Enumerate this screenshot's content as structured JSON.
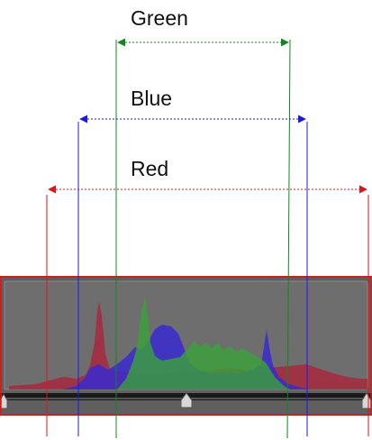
{
  "labels": {
    "green": "Green",
    "blue": "Blue",
    "red": "Red"
  },
  "colors": {
    "green": "#12861a",
    "blue": "#1a1ae6",
    "red": "#e01414",
    "panel_bg": "#5f5f5f",
    "plot_bg": "#6e6e6e",
    "track": "#1a1a1a",
    "handle": "#d8d8d8"
  },
  "icons": {
    "left_handle": "triangle-slider-handle",
    "mid_handle": "triangle-slider-handle",
    "right_handle": "triangle-slider-handle",
    "range_arrows": "double-headed-arrow"
  }
}
